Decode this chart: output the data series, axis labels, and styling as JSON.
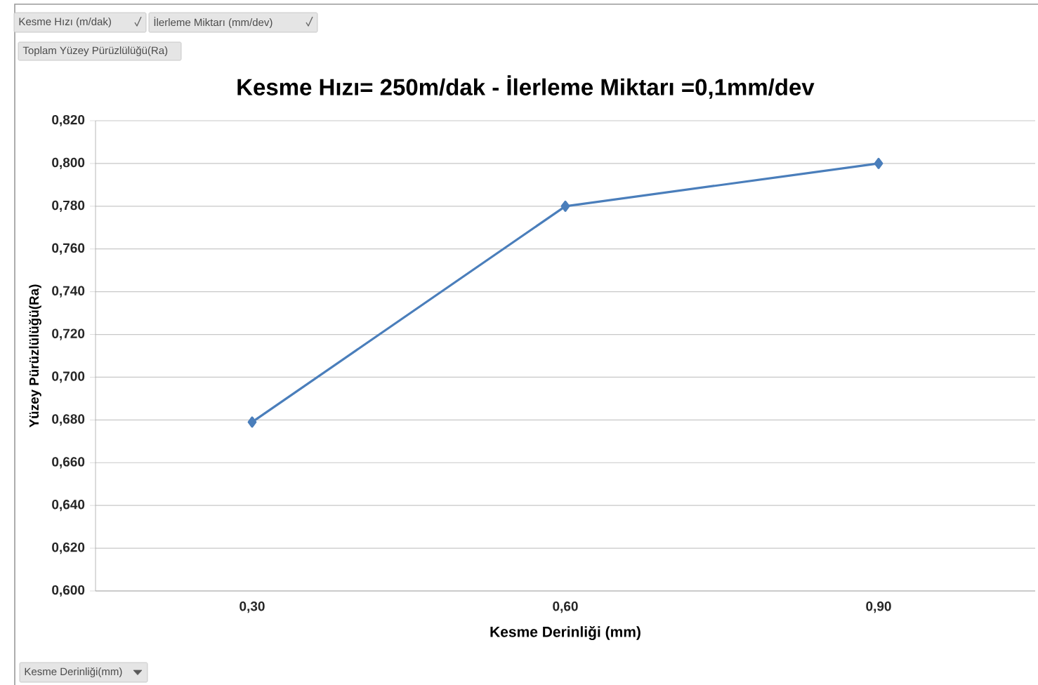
{
  "chart_data": {
    "type": "line",
    "title": "Kesme Hızı= 250m/dak - İlerleme Miktarı =0,1mm/dev",
    "xlabel": "Kesme Derinliği (mm)",
    "ylabel": "Yüzey Pürüzlülüğü(Ra)",
    "categories": [
      "0,30",
      "0,60",
      "0,90"
    ],
    "series": [
      {
        "color": "#4a7ebb",
        "values": [
          0.679,
          0.78,
          0.8
        ]
      }
    ],
    "ylim": [
      0.6,
      0.82
    ],
    "yticks": [
      {
        "value": 0.6,
        "label": "0,600"
      },
      {
        "value": 0.62,
        "label": "0,620"
      },
      {
        "value": 0.64,
        "label": "0,640"
      },
      {
        "value": 0.66,
        "label": "0,660"
      },
      {
        "value": 0.68,
        "label": "0,680"
      },
      {
        "value": 0.7,
        "label": "0,700"
      },
      {
        "value": 0.72,
        "label": "0,720"
      },
      {
        "value": 0.74,
        "label": "0,740"
      },
      {
        "value": 0.76,
        "label": "0,760"
      },
      {
        "value": 0.78,
        "label": "0,780"
      },
      {
        "value": 0.8,
        "label": "0,800"
      },
      {
        "value": 0.82,
        "label": "0,820"
      }
    ],
    "grid": "y",
    "marker": "diamond",
    "line_style": "solid",
    "annotations": [
      "Kesme Hızı (m/dak)",
      "İlerleme Miktarı (mm/dev)",
      "Toplam Yüzey Pürüzlülüğü(Ra)",
      "Kesme Derinliği(mm)"
    ]
  }
}
